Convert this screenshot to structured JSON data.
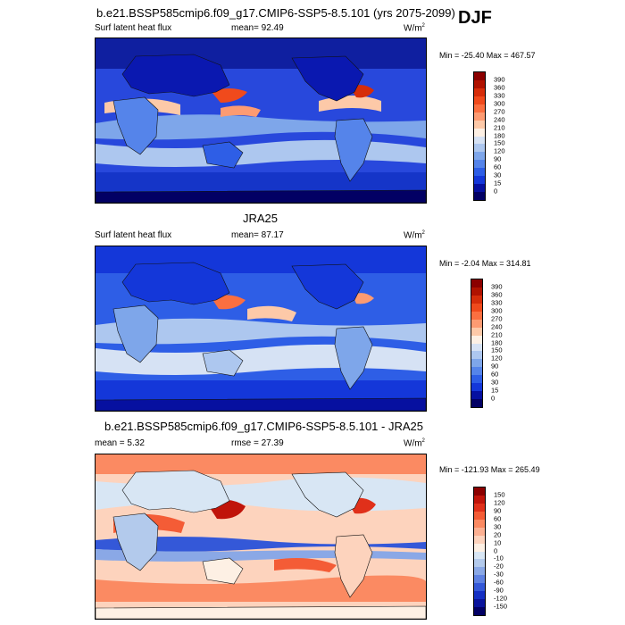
{
  "season": "DJF",
  "panels": [
    {
      "title": "b.e21.BSSP585cmip6.f09_g17.CMIP6-SSP5-8.5.101 (yrs 2075-2099)",
      "left_label": "Surf latent heat flux",
      "stat_label": "mean=",
      "stat_value": "92.49",
      "units": "W/m",
      "units_sup": "2",
      "minmax": "Min = -25.40 Max = 467.57",
      "colorbar_labels": [
        "390",
        "360",
        "330",
        "300",
        "270",
        "240",
        "210",
        "180",
        "150",
        "120",
        "90",
        "60",
        "30",
        "15",
        "0"
      ],
      "colorbar_colors": [
        "#8b0000",
        "#b01200",
        "#d62d0a",
        "#f04a1c",
        "#fb6f40",
        "#fd9b72",
        "#fdc9a8",
        "#fdf0e4",
        "#d6e2f4",
        "#adc7ef",
        "#7ea6ea",
        "#5584ea",
        "#2e5ee6",
        "#1437d9",
        "#0610a0",
        "#020064"
      ]
    },
    {
      "title": "JRA25",
      "left_label": "Surf latent heat flux",
      "stat_label": "mean=",
      "stat_value": "87.17",
      "units": "W/m",
      "units_sup": "2",
      "minmax": "Min = -2.04 Max = 314.81",
      "colorbar_labels": [
        "390",
        "360",
        "330",
        "300",
        "270",
        "240",
        "210",
        "180",
        "150",
        "120",
        "90",
        "60",
        "30",
        "15",
        "0"
      ],
      "colorbar_colors": [
        "#8b0000",
        "#b01200",
        "#d62d0a",
        "#f04a1c",
        "#fb6f40",
        "#fd9b72",
        "#fdc9a8",
        "#fdf0e4",
        "#d6e2f4",
        "#adc7ef",
        "#7ea6ea",
        "#5584ea",
        "#2e5ee6",
        "#1437d9",
        "#0610a0",
        "#020064"
      ]
    },
    {
      "title": "b.e21.BSSP585cmip6.f09_g17.CMIP6-SSP5-8.5.101 - JRA25",
      "left_label": "mean =   5.32",
      "stat_label": "rmse =",
      "stat_value": "27.39",
      "units": "W/m",
      "units_sup": "2",
      "minmax": "Min = -121.93 Max = 265.49",
      "colorbar_labels": [
        "150",
        "120",
        "90",
        "60",
        "30",
        "20",
        "10",
        "0",
        "-10",
        "-20",
        "-30",
        "-60",
        "-90",
        "-120",
        "-150"
      ],
      "colorbar_colors": [
        "#8b0000",
        "#c0140a",
        "#e0301a",
        "#f45c36",
        "#fb8a62",
        "#fcb092",
        "#fdd3bd",
        "#fdf0e4",
        "#d8e6f4",
        "#b3caec",
        "#8aa8e6",
        "#5f82e2",
        "#3458d8",
        "#1530c4",
        "#0a149c",
        "#020064"
      ]
    }
  ]
}
